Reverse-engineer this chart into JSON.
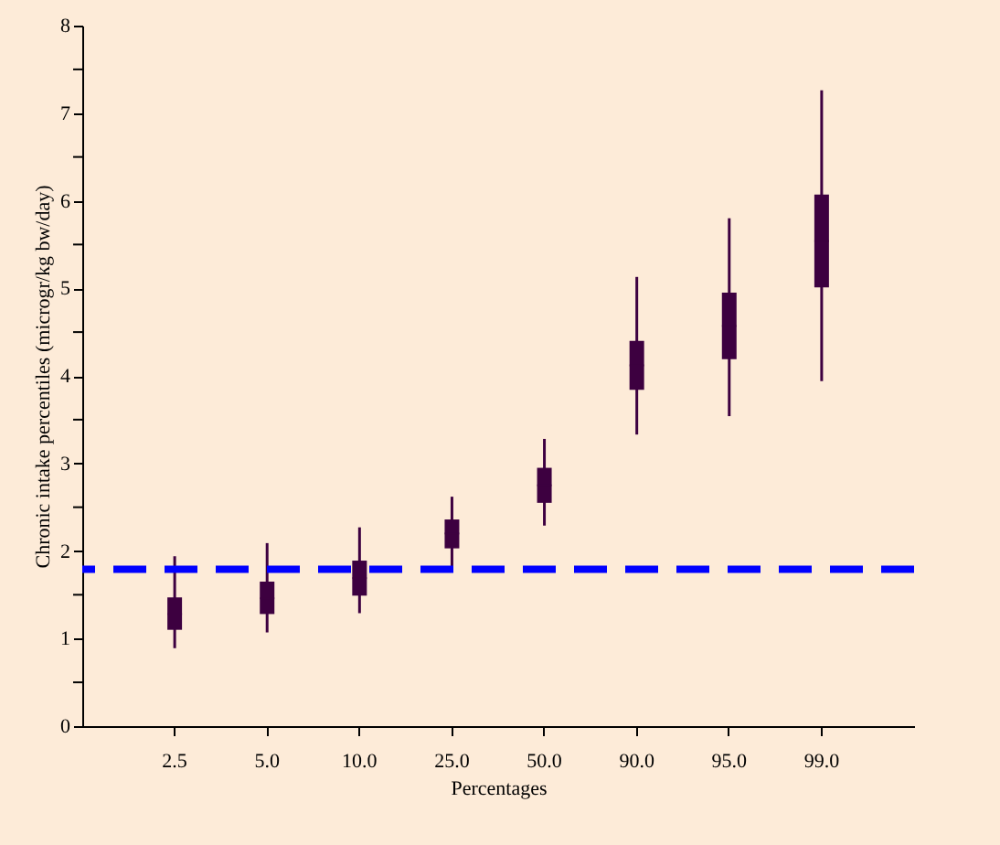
{
  "chart_data": {
    "type": "box",
    "xlabel": "Percentages",
    "ylabel": "Chronic intake percentiles (microgr/kg bw/day)",
    "categories": [
      "2.5",
      "5.0",
      "10.0",
      "25.0",
      "50.0",
      "90.0",
      "95.0",
      "99.0"
    ],
    "color": "#3d0040",
    "boxes": [
      {
        "low": 0.89,
        "q1": 1.1,
        "median": 1.28,
        "q3": 1.47,
        "high": 1.94
      },
      {
        "low": 1.07,
        "q1": 1.28,
        "median": 1.46,
        "q3": 1.65,
        "high": 2.09
      },
      {
        "low": 1.29,
        "q1": 1.49,
        "median": 1.69,
        "q3": 1.89,
        "high": 2.27
      },
      {
        "low": 1.8,
        "q1": 2.03,
        "median": 2.2,
        "q3": 2.36,
        "high": 2.62
      },
      {
        "low": 2.29,
        "q1": 2.55,
        "median": 2.75,
        "q3": 2.95,
        "high": 3.28
      },
      {
        "low": 3.33,
        "q1": 3.84,
        "median": 4.12,
        "q3": 4.4,
        "high": 5.13
      },
      {
        "low": 3.54,
        "q1": 4.19,
        "median": 4.57,
        "q3": 4.95,
        "high": 5.8
      },
      {
        "low": 3.94,
        "q1": 5.01,
        "median": 5.54,
        "q3": 6.07,
        "high": 7.26
      }
    ],
    "ylim": [
      0,
      8
    ],
    "yticks": [
      0,
      {
        "value": 0.5,
        "label": null
      },
      1,
      {
        "value": 1.5,
        "label": null
      },
      2,
      {
        "value": 2.5,
        "label": null
      },
      3,
      {
        "value": 3.5,
        "label": null
      },
      4,
      {
        "value": 4.5,
        "label": null
      },
      5,
      {
        "value": 5.5,
        "label": null
      },
      6,
      {
        "value": 6.5,
        "label": null
      },
      7,
      {
        "value": 7.5,
        "label": null
      },
      8
    ],
    "ref_lines": [
      {
        "axis": "y",
        "value": 1.79,
        "color": "#0000ff",
        "line_style": "dashed"
      }
    ],
    "grid": false
  }
}
